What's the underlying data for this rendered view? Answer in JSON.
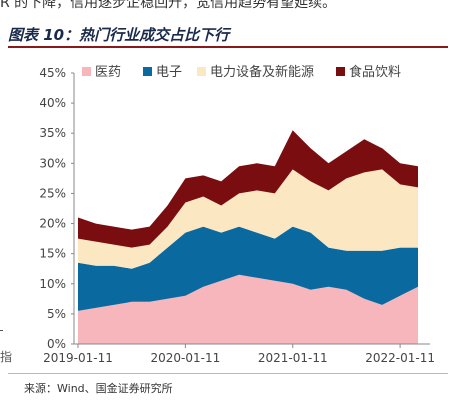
{
  "page": {
    "top_fragment": "R 的下降，信用逐步企稳回升，宽信用趋势有望延续。",
    "figure_title": "图表 10：热门行业成交占比下行",
    "source": "来源：Wind、国金证券研究所",
    "left_mark": "指"
  },
  "chart_data": {
    "type": "area",
    "stacked": true,
    "title": "",
    "xlabel": "",
    "ylabel": "",
    "ylim": [
      0,
      45
    ],
    "yticks": [
      "0%",
      "5%",
      "10%",
      "15%",
      "20%",
      "25%",
      "30%",
      "35%",
      "40%",
      "45%"
    ],
    "xticks": [
      "2019-01-11",
      "2020-01-11",
      "2021-01-11",
      "2022-01-11"
    ],
    "legend_position": "top",
    "grid": false,
    "x": [
      "2019-01",
      "2019-03",
      "2019-05",
      "2019-07",
      "2019-09",
      "2019-11",
      "2020-01",
      "2020-03",
      "2020-05",
      "2020-07",
      "2020-09",
      "2020-11",
      "2021-01",
      "2021-03",
      "2021-05",
      "2021-07",
      "2021-09",
      "2021-11",
      "2022-01",
      "2022-03"
    ],
    "series": [
      {
        "name": "医药",
        "color": "#f7b6bb",
        "values": [
          5.5,
          6.0,
          6.5,
          7.0,
          7.0,
          7.5,
          8.0,
          9.5,
          10.5,
          11.5,
          11.0,
          10.5,
          10.0,
          9.0,
          9.5,
          9.0,
          7.5,
          6.5,
          8.0,
          9.5
        ]
      },
      {
        "name": "电子",
        "color": "#0a6aa0",
        "values": [
          8.0,
          7.0,
          6.5,
          5.5,
          6.5,
          8.5,
          10.5,
          10.0,
          8.0,
          8.0,
          7.5,
          7.0,
          9.5,
          9.5,
          6.5,
          6.5,
          8.0,
          9.0,
          8.0,
          6.5
        ]
      },
      {
        "name": "电力设备及新能源",
        "color": "#fbe7c1",
        "values": [
          4.0,
          4.0,
          3.5,
          3.5,
          3.0,
          3.5,
          5.0,
          5.0,
          4.5,
          5.5,
          7.0,
          7.5,
          9.5,
          8.5,
          9.5,
          12.0,
          13.0,
          13.5,
          10.5,
          10.0
        ]
      },
      {
        "name": "食品饮料",
        "color": "#7a0d10",
        "values": [
          3.5,
          3.0,
          3.0,
          3.0,
          3.0,
          3.5,
          4.0,
          3.5,
          4.0,
          4.5,
          4.5,
          4.5,
          6.5,
          5.5,
          4.5,
          4.5,
          5.5,
          3.5,
          3.5,
          3.5
        ]
      }
    ]
  }
}
